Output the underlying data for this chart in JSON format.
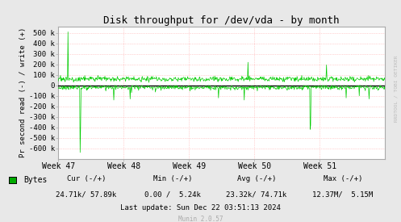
{
  "title": "Disk throughput for /dev/vda - by month",
  "ylabel": "Pr second read (-) / write (+)",
  "xlabel_ticks": [
    "Week 47",
    "Week 48",
    "Week 49",
    "Week 50",
    "Week 51"
  ],
  "ylim": [
    -700000,
    560000
  ],
  "yticks": [
    -600000,
    -500000,
    -400000,
    -300000,
    -200000,
    -100000,
    0,
    100000,
    200000,
    300000,
    400000,
    500000
  ],
  "ytick_labels": [
    "-600 k",
    "-500 k",
    "-400 k",
    "-300 k",
    "-200 k",
    "-100 k",
    "0",
    "100 k",
    "200 k",
    "300 k",
    "400 k",
    "500 k"
  ],
  "bg_color": "#e8e8e8",
  "plot_bg_color": "#ffffff",
  "grid_color": "#ffaaaa",
  "line_color": "#00cc00",
  "zero_line_color": "#000000",
  "border_color": "#aaaaaa",
  "legend_label": "Bytes",
  "legend_color": "#00aa00",
  "cur_text": "Cur (-/+)",
  "cur_val": "24.71k/ 57.89k",
  "min_text": "Min (-/+)",
  "min_val": "0.00 /  5.24k",
  "avg_text": "Avg (-/+)",
  "avg_val": "23.32k/ 74.71k",
  "max_text": "Max (-/+)",
  "max_val": "12.37M/  5.15M",
  "last_update": "Last update: Sun Dec 22 03:51:13 2024",
  "munin_version": "Munin 2.0.57",
  "rrdtool_text": "RRDTOOL / TOBI OETIKER",
  "n_points": 700,
  "figwidth": 4.97,
  "figheight": 2.75
}
